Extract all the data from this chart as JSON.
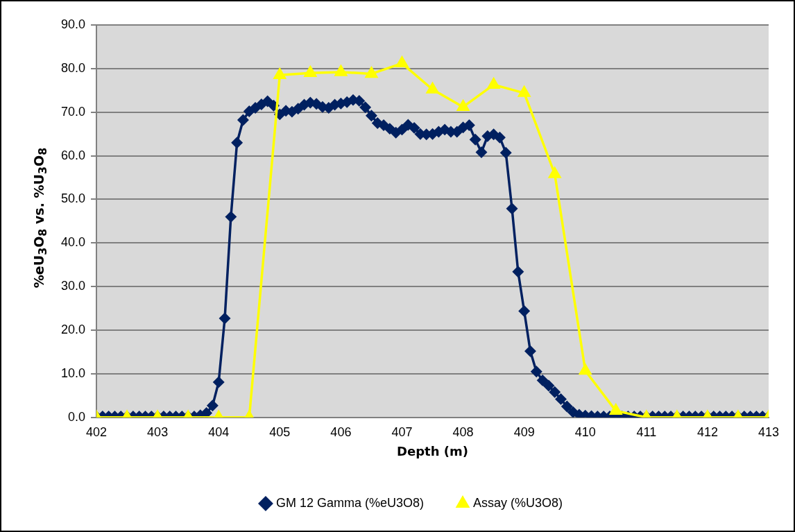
{
  "chart_data": {
    "type": "line",
    "xlabel": "Depth (m)",
    "ylabel": "%eU$_{3}$O$_{8}$ vs. %U$_{3}$O$_{8}$",
    "xlim": [
      402,
      413
    ],
    "xticks": [
      402,
      403,
      404,
      405,
      406,
      407,
      408,
      409,
      410,
      411,
      412,
      413
    ],
    "ylim": [
      0,
      90
    ],
    "yticks": [
      {
        "value": 0,
        "label": "0.0"
      },
      {
        "value": 10,
        "label": "10.0"
      },
      {
        "value": 20,
        "label": "20.0"
      },
      {
        "value": 30,
        "label": "30.0"
      },
      {
        "value": 40,
        "label": "40.0"
      },
      {
        "value": 50,
        "label": "50.0"
      },
      {
        "value": 60,
        "label": "60.0"
      },
      {
        "value": 70,
        "label": "70.0"
      },
      {
        "value": 80,
        "label": "80.0"
      },
      {
        "value": 90,
        "label": "90.0"
      }
    ],
    "grid": "y",
    "legend": "bottom",
    "line_style": "solid",
    "series": [
      {
        "name": "GM 12 Gamma (%eU3O8)",
        "color": "#002060",
        "marker": "diamond",
        "x": [
          402.0,
          402.1,
          402.2,
          402.3,
          402.4,
          402.5,
          402.6,
          402.7,
          402.8,
          402.9,
          403.0,
          403.1,
          403.2,
          403.3,
          403.4,
          403.5,
          403.6,
          403.7,
          403.8,
          403.9,
          404.0,
          404.1,
          404.2,
          404.3,
          404.4,
          404.5,
          404.6,
          404.7,
          404.8,
          404.9,
          405.0,
          405.1,
          405.2,
          405.3,
          405.4,
          405.5,
          405.6,
          405.7,
          405.8,
          405.9,
          406.0,
          406.1,
          406.2,
          406.3,
          406.4,
          406.5,
          406.6,
          406.7,
          406.8,
          406.9,
          407.0,
          407.1,
          407.2,
          407.3,
          407.4,
          407.5,
          407.6,
          407.7,
          407.8,
          407.9,
          408.0,
          408.1,
          408.2,
          408.3,
          408.4,
          408.5,
          408.6,
          408.7,
          408.8,
          408.9,
          409.0,
          409.1,
          409.2,
          409.3,
          409.4,
          409.5,
          409.6,
          409.7,
          409.8,
          409.9,
          410.0,
          410.1,
          410.2,
          410.3,
          410.4,
          410.5,
          410.6,
          410.7,
          410.8,
          410.9,
          411.0,
          411.1,
          411.2,
          411.3,
          411.4,
          411.5,
          411.6,
          411.7,
          411.8,
          411.9,
          412.0,
          412.1,
          412.2,
          412.3,
          412.4,
          412.5,
          412.6,
          412.7,
          412.8,
          412.9,
          413.0
        ],
        "values": [
          0.2,
          0.2,
          0.2,
          0.2,
          0.2,
          0.2,
          0.2,
          0.2,
          0.2,
          0.2,
          0.2,
          0.2,
          0.2,
          0.2,
          0.2,
          0.2,
          0.2,
          0.5,
          1.0,
          2.7,
          8.1,
          22.7,
          46,
          63,
          68.2,
          70.2,
          71,
          71.8,
          72.5,
          71.5,
          69.5,
          70.3,
          70.1,
          70.8,
          71.7,
          72.2,
          71.9,
          71.2,
          71,
          71.7,
          72,
          72.3,
          72.8,
          72.6,
          71.1,
          69.2,
          67.5,
          67,
          66.2,
          65.3,
          66,
          67.1,
          66.4,
          65,
          64.9,
          65,
          65.5,
          66,
          65.5,
          65.5,
          66.5,
          67,
          63.7,
          60.8,
          64.5,
          64.9,
          64.2,
          60.7,
          47.9,
          33.4,
          24.4,
          15.2,
          10.5,
          8.5,
          7.3,
          5.8,
          4.2,
          2.5,
          1.2,
          0.6,
          0.4,
          0.3,
          0.2,
          0.2,
          0.2,
          0.2,
          0.2,
          0.2,
          0.2,
          0.2,
          0.2,
          0.2,
          0.2,
          0.2,
          0.2,
          0.2,
          0.2,
          0.2,
          0.2,
          0.2,
          0.2,
          0.2,
          0.2,
          0.2,
          0.2,
          0.2,
          0.2,
          0.2,
          0.2,
          0.2,
          0.2
        ]
      },
      {
        "name": "Assay (%U3O8)",
        "color": "#ffff00",
        "marker": "triangle",
        "x": [
          402,
          402.5,
          403,
          403.5,
          404,
          404.5,
          405,
          405.5,
          406,
          406.5,
          407,
          407.5,
          408,
          408.5,
          409,
          409.5,
          410,
          410.5,
          411,
          411.5,
          412,
          412.5,
          413
        ],
        "values": [
          0,
          0,
          0,
          0,
          0,
          0,
          78.5,
          79,
          79.2,
          78.8,
          81.2,
          75.2,
          71.2,
          76.3,
          74.4,
          55.8,
          10.7,
          1.5,
          0,
          0,
          0,
          0,
          0
        ]
      }
    ]
  }
}
